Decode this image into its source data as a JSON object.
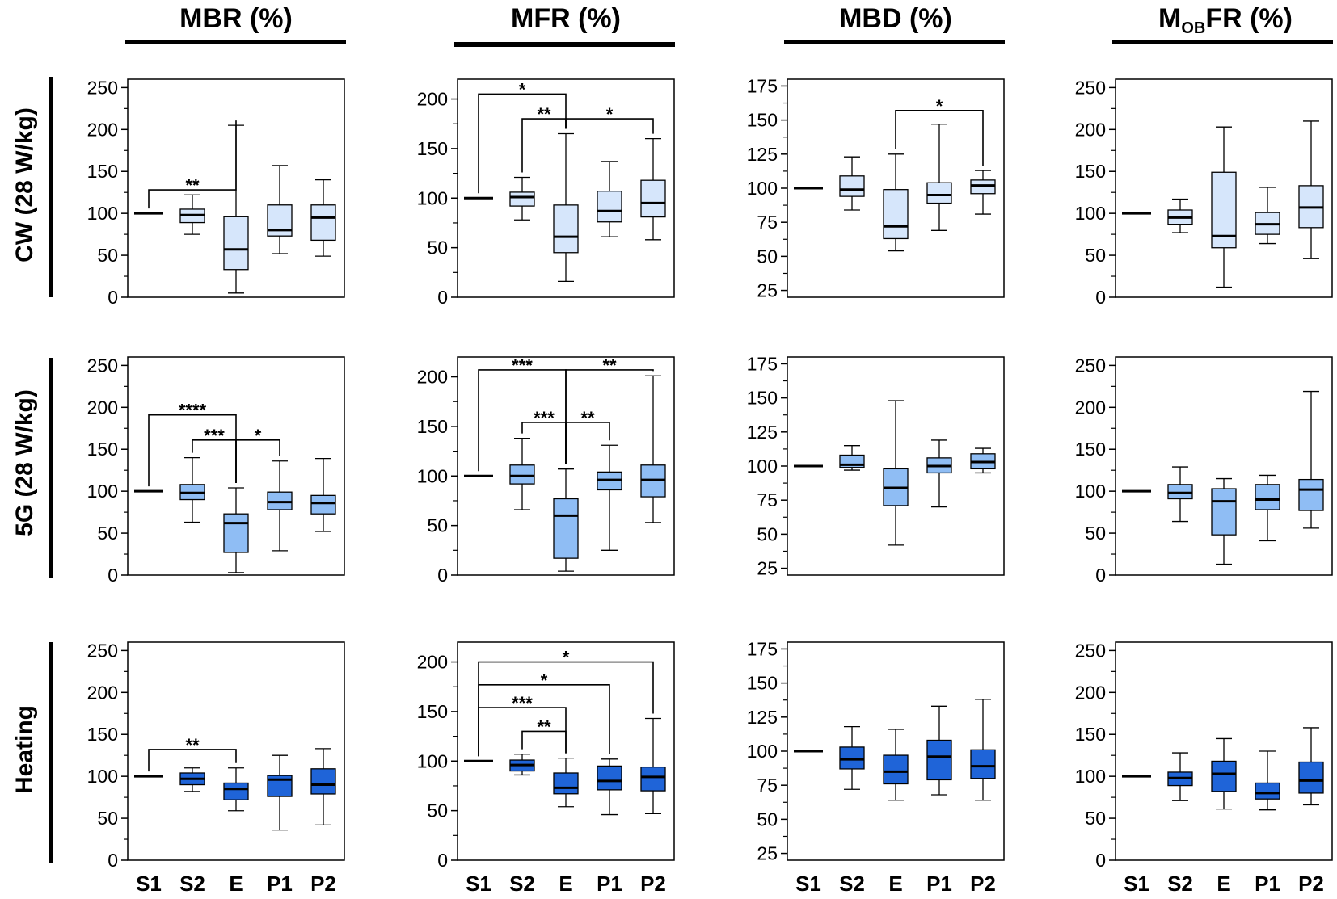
{
  "colors": {
    "row_fills": [
      "#d6e6fb",
      "#8fbdf4",
      "#1f64d8"
    ],
    "stroke": "#000000"
  },
  "column_titles": [
    {
      "main": "MBR (%)"
    },
    {
      "main": "MFR (%)"
    },
    {
      "main": "MBD (%)"
    },
    {
      "prefix": "M",
      "sub": "OB",
      "suffix": "FR (%)",
      "full": "MOBFR (%)"
    }
  ],
  "row_labels": [
    "CW (28 W/kg)",
    "5G (28 W/kg)",
    "Heating"
  ],
  "chart_data": [
    {
      "type": "box",
      "row": 0,
      "col": 0,
      "title": "MBR (%)",
      "row_label": "CW (28 W/kg)",
      "categories": [
        "S1",
        "S2",
        "E",
        "P1",
        "P2"
      ],
      "ylim": [
        0,
        260
      ],
      "yticks": [
        0,
        50,
        100,
        150,
        200,
        250
      ],
      "boxes": [
        {
          "min": 100,
          "q1": 100,
          "median": 100,
          "q3": 100,
          "max": 100
        },
        {
          "min": 75,
          "q1": 89,
          "median": 98,
          "q3": 105,
          "max": 122
        },
        {
          "min": 5,
          "q1": 33,
          "median": 57,
          "q3": 96,
          "max": 205
        },
        {
          "min": 52,
          "q1": 73,
          "median": 80,
          "q3": 110,
          "max": 157
        },
        {
          "min": 49,
          "q1": 68,
          "median": 95,
          "q3": 110,
          "max": 140
        }
      ],
      "significance": [
        {
          "from": 0,
          "to": 2,
          "label": "**",
          "y": 128
        }
      ]
    },
    {
      "type": "box",
      "row": 0,
      "col": 1,
      "title": "MFR (%)",
      "row_label": "CW (28 W/kg)",
      "categories": [
        "S1",
        "S2",
        "E",
        "P1",
        "P2"
      ],
      "ylim": [
        0,
        220
      ],
      "yticks": [
        0,
        50,
        100,
        150,
        200
      ],
      "boxes": [
        {
          "min": 100,
          "q1": 100,
          "median": 100,
          "q3": 100,
          "max": 100
        },
        {
          "min": 78,
          "q1": 92,
          "median": 101,
          "q3": 106,
          "max": 121
        },
        {
          "min": 16,
          "q1": 45,
          "median": 61,
          "q3": 93,
          "max": 165
        },
        {
          "min": 61,
          "q1": 76,
          "median": 87,
          "q3": 107,
          "max": 137
        },
        {
          "min": 58,
          "q1": 81,
          "median": 95,
          "q3": 118,
          "max": 160
        }
      ],
      "significance": [
        {
          "from": 0,
          "to": 2,
          "label": "*",
          "y": 205
        },
        {
          "from": 1,
          "to": 2,
          "label": "**",
          "y": 180
        },
        {
          "from": 2,
          "to": 4,
          "label": "*",
          "y": 180
        }
      ]
    },
    {
      "type": "box",
      "row": 0,
      "col": 2,
      "title": "MBD (%)",
      "row_label": "CW (28 W/kg)",
      "categories": [
        "S1",
        "S2",
        "E",
        "P1",
        "P2"
      ],
      "ylim": [
        20,
        180
      ],
      "yticks": [
        25,
        50,
        75,
        100,
        125,
        150,
        175
      ],
      "boxes": [
        {
          "min": 100,
          "q1": 100,
          "median": 100,
          "q3": 100,
          "max": 100
        },
        {
          "min": 84,
          "q1": 94,
          "median": 99,
          "q3": 109,
          "max": 123
        },
        {
          "min": 54,
          "q1": 63,
          "median": 72,
          "q3": 99,
          "max": 125
        },
        {
          "min": 69,
          "q1": 89,
          "median": 95,
          "q3": 104,
          "max": 147
        },
        {
          "min": 81,
          "q1": 96,
          "median": 102,
          "q3": 106,
          "max": 113
        }
      ],
      "significance": [
        {
          "from": 2,
          "to": 4,
          "label": "*",
          "y": 157
        }
      ]
    },
    {
      "type": "box",
      "row": 0,
      "col": 3,
      "title": "MOBFR (%)",
      "row_label": "CW (28 W/kg)",
      "categories": [
        "S1",
        "S2",
        "E",
        "P1",
        "P2"
      ],
      "ylim": [
        0,
        260
      ],
      "yticks": [
        0,
        50,
        100,
        150,
        200,
        250
      ],
      "boxes": [
        {
          "min": 100,
          "q1": 100,
          "median": 100,
          "q3": 100,
          "max": 100
        },
        {
          "min": 77,
          "q1": 87,
          "median": 95,
          "q3": 104,
          "max": 117
        },
        {
          "min": 12,
          "q1": 59,
          "median": 73,
          "q3": 149,
          "max": 203
        },
        {
          "min": 64,
          "q1": 75,
          "median": 87,
          "q3": 101,
          "max": 131
        },
        {
          "min": 46,
          "q1": 83,
          "median": 107,
          "q3": 133,
          "max": 210
        }
      ],
      "significance": []
    },
    {
      "type": "box",
      "row": 1,
      "col": 0,
      "title": "MBR (%)",
      "row_label": "5G (28 W/kg)",
      "categories": [
        "S1",
        "S2",
        "E",
        "P1",
        "P2"
      ],
      "ylim": [
        0,
        260
      ],
      "yticks": [
        0,
        50,
        100,
        150,
        200,
        250
      ],
      "boxes": [
        {
          "min": 100,
          "q1": 100,
          "median": 100,
          "q3": 100,
          "max": 100
        },
        {
          "min": 63,
          "q1": 90,
          "median": 98,
          "q3": 108,
          "max": 140
        },
        {
          "min": 3,
          "q1": 27,
          "median": 62,
          "q3": 73,
          "max": 104
        },
        {
          "min": 29,
          "q1": 78,
          "median": 87,
          "q3": 99,
          "max": 136
        },
        {
          "min": 52,
          "q1": 73,
          "median": 86,
          "q3": 95,
          "max": 139
        }
      ],
      "significance": [
        {
          "from": 0,
          "to": 2,
          "label": "****",
          "y": 191
        },
        {
          "from": 1,
          "to": 2,
          "label": "***",
          "y": 161
        },
        {
          "from": 2,
          "to": 3,
          "label": "*",
          "y": 161
        }
      ]
    },
    {
      "type": "box",
      "row": 1,
      "col": 1,
      "title": "MFR (%)",
      "row_label": "5G (28 W/kg)",
      "categories": [
        "S1",
        "S2",
        "E",
        "P1",
        "P2"
      ],
      "ylim": [
        0,
        220
      ],
      "yticks": [
        0,
        50,
        100,
        150,
        200
      ],
      "boxes": [
        {
          "min": 100,
          "q1": 100,
          "median": 100,
          "q3": 100,
          "max": 100
        },
        {
          "min": 66,
          "q1": 92,
          "median": 100,
          "q3": 111,
          "max": 138
        },
        {
          "min": 4,
          "q1": 17,
          "median": 60,
          "q3": 77,
          "max": 107
        },
        {
          "min": 25,
          "q1": 86,
          "median": 96,
          "q3": 104,
          "max": 131
        },
        {
          "min": 53,
          "q1": 79,
          "median": 96,
          "q3": 111,
          "max": 201
        }
      ],
      "significance": [
        {
          "from": 0,
          "to": 2,
          "label": "***",
          "y": 207
        },
        {
          "from": 2,
          "to": 4,
          "label": "**",
          "y": 207
        },
        {
          "from": 1,
          "to": 2,
          "label": "***",
          "y": 154
        },
        {
          "from": 2,
          "to": 3,
          "label": "**",
          "y": 154
        }
      ]
    },
    {
      "type": "box",
      "row": 1,
      "col": 2,
      "title": "MBD (%)",
      "row_label": "5G (28 W/kg)",
      "categories": [
        "S1",
        "S2",
        "E",
        "P1",
        "P2"
      ],
      "ylim": [
        20,
        180
      ],
      "yticks": [
        25,
        50,
        75,
        100,
        125,
        150,
        175
      ],
      "boxes": [
        {
          "min": 100,
          "q1": 100,
          "median": 100,
          "q3": 100,
          "max": 100
        },
        {
          "min": 97,
          "q1": 99,
          "median": 101,
          "q3": 108,
          "max": 115
        },
        {
          "min": 42,
          "q1": 71,
          "median": 84,
          "q3": 98,
          "max": 148
        },
        {
          "min": 70,
          "q1": 95,
          "median": 100,
          "q3": 106,
          "max": 119
        },
        {
          "min": 95,
          "q1": 98,
          "median": 103,
          "q3": 109,
          "max": 113
        }
      ],
      "significance": []
    },
    {
      "type": "box",
      "row": 1,
      "col": 3,
      "title": "MOBFR (%)",
      "row_label": "5G (28 W/kg)",
      "categories": [
        "S1",
        "S2",
        "E",
        "P1",
        "P2"
      ],
      "ylim": [
        0,
        260
      ],
      "yticks": [
        0,
        50,
        100,
        150,
        200,
        250
      ],
      "boxes": [
        {
          "min": 100,
          "q1": 100,
          "median": 100,
          "q3": 100,
          "max": 100
        },
        {
          "min": 64,
          "q1": 91,
          "median": 98,
          "q3": 108,
          "max": 129
        },
        {
          "min": 13,
          "q1": 48,
          "median": 88,
          "q3": 103,
          "max": 115
        },
        {
          "min": 41,
          "q1": 78,
          "median": 90,
          "q3": 108,
          "max": 119
        },
        {
          "min": 56,
          "q1": 77,
          "median": 102,
          "q3": 114,
          "max": 219
        }
      ],
      "significance": []
    },
    {
      "type": "box",
      "row": 2,
      "col": 0,
      "title": "MBR (%)",
      "row_label": "Heating",
      "categories": [
        "S1",
        "S2",
        "E",
        "P1",
        "P2"
      ],
      "ylim": [
        0,
        260
      ],
      "yticks": [
        0,
        50,
        100,
        150,
        200,
        250
      ],
      "boxes": [
        {
          "min": 100,
          "q1": 100,
          "median": 100,
          "q3": 100,
          "max": 100
        },
        {
          "min": 82,
          "q1": 90,
          "median": 97,
          "q3": 104,
          "max": 110
        },
        {
          "min": 59,
          "q1": 72,
          "median": 85,
          "q3": 92,
          "max": 110
        },
        {
          "min": 36,
          "q1": 76,
          "median": 96,
          "q3": 101,
          "max": 125
        },
        {
          "min": 42,
          "q1": 79,
          "median": 90,
          "q3": 109,
          "max": 133
        }
      ],
      "significance": [
        {
          "from": 0,
          "to": 2,
          "label": "**",
          "y": 132
        }
      ]
    },
    {
      "type": "box",
      "row": 2,
      "col": 1,
      "title": "MFR (%)",
      "row_label": "Heating",
      "categories": [
        "S1",
        "S2",
        "E",
        "P1",
        "P2"
      ],
      "ylim": [
        0,
        220
      ],
      "yticks": [
        0,
        50,
        100,
        150,
        200
      ],
      "boxes": [
        {
          "min": 100,
          "q1": 100,
          "median": 100,
          "q3": 100,
          "max": 100
        },
        {
          "min": 86,
          "q1": 90,
          "median": 96,
          "q3": 101,
          "max": 107
        },
        {
          "min": 54,
          "q1": 67,
          "median": 73,
          "q3": 88,
          "max": 103
        },
        {
          "min": 46,
          "q1": 71,
          "median": 80,
          "q3": 95,
          "max": 102
        },
        {
          "min": 47,
          "q1": 70,
          "median": 84,
          "q3": 94,
          "max": 143
        }
      ],
      "significance": [
        {
          "from": 0,
          "to": 4,
          "label": "*",
          "y": 200
        },
        {
          "from": 0,
          "to": 3,
          "label": "*",
          "y": 177
        },
        {
          "from": 0,
          "to": 2,
          "label": "***",
          "y": 154
        },
        {
          "from": 1,
          "to": 2,
          "label": "**",
          "y": 130
        }
      ]
    },
    {
      "type": "box",
      "row": 2,
      "col": 2,
      "title": "MBD (%)",
      "row_label": "Heating",
      "categories": [
        "S1",
        "S2",
        "E",
        "P1",
        "P2"
      ],
      "ylim": [
        20,
        180
      ],
      "yticks": [
        25,
        50,
        75,
        100,
        125,
        150,
        175
      ],
      "boxes": [
        {
          "min": 100,
          "q1": 100,
          "median": 100,
          "q3": 100,
          "max": 100
        },
        {
          "min": 72,
          "q1": 87,
          "median": 94,
          "q3": 103,
          "max": 118
        },
        {
          "min": 64,
          "q1": 76,
          "median": 85,
          "q3": 97,
          "max": 116
        },
        {
          "min": 68,
          "q1": 79,
          "median": 96,
          "q3": 108,
          "max": 133
        },
        {
          "min": 64,
          "q1": 80,
          "median": 89,
          "q3": 101,
          "max": 138
        }
      ],
      "significance": []
    },
    {
      "type": "box",
      "row": 2,
      "col": 3,
      "title": "MOBFR (%)",
      "row_label": "Heating",
      "categories": [
        "S1",
        "S2",
        "E",
        "P1",
        "P2"
      ],
      "ylim": [
        0,
        260
      ],
      "yticks": [
        0,
        50,
        100,
        150,
        200,
        250
      ],
      "boxes": [
        {
          "min": 100,
          "q1": 100,
          "median": 100,
          "q3": 100,
          "max": 100
        },
        {
          "min": 71,
          "q1": 89,
          "median": 98,
          "q3": 105,
          "max": 128
        },
        {
          "min": 61,
          "q1": 82,
          "median": 103,
          "q3": 118,
          "max": 145
        },
        {
          "min": 60,
          "q1": 73,
          "median": 80,
          "q3": 92,
          "max": 130
        },
        {
          "min": 66,
          "q1": 80,
          "median": 95,
          "q3": 117,
          "max": 158
        }
      ],
      "significance": []
    }
  ]
}
